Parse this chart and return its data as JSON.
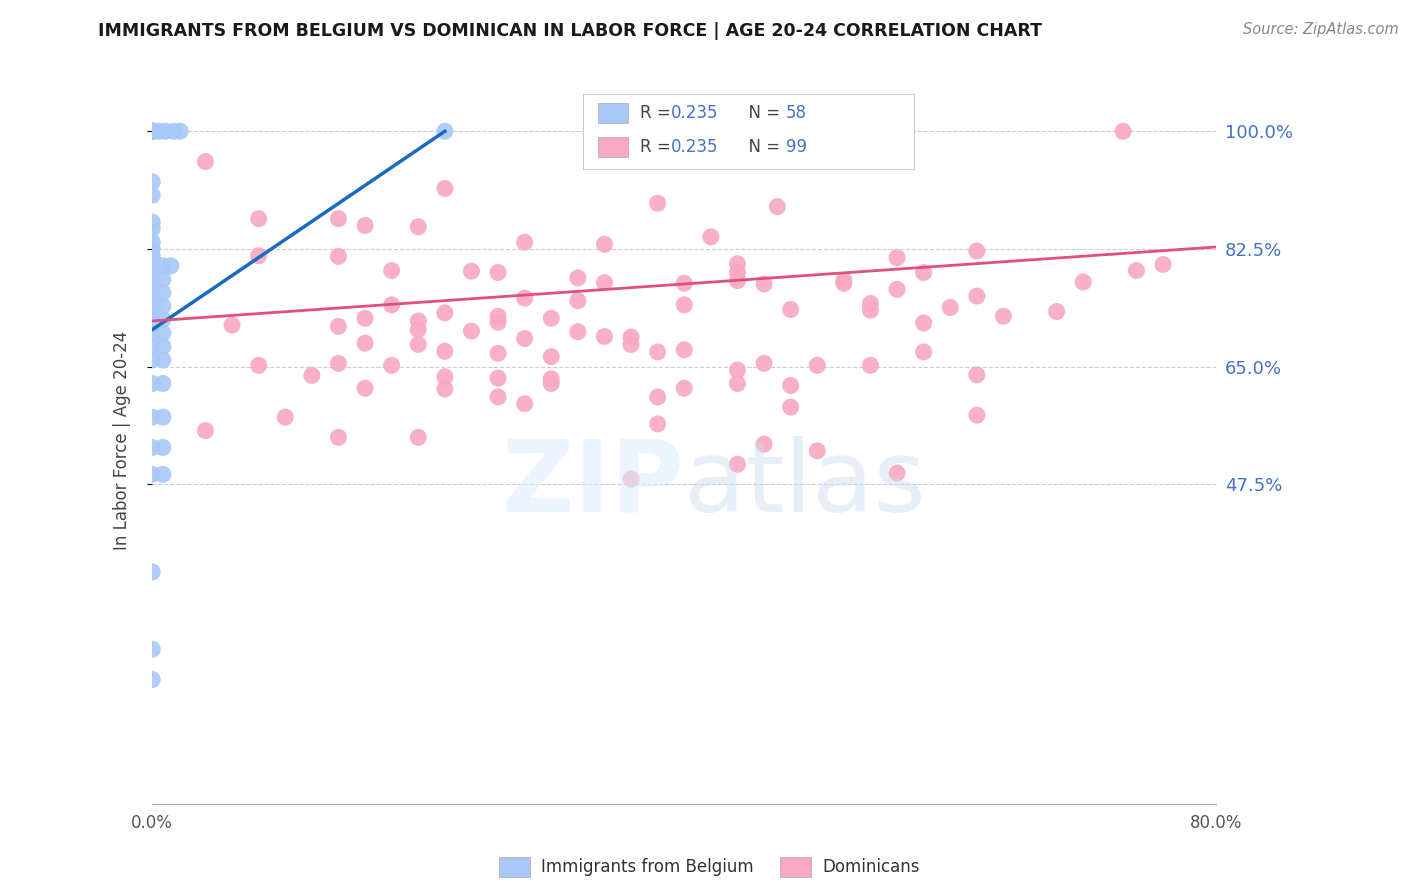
{
  "title": "IMMIGRANTS FROM BELGIUM VS DOMINICAN IN LABOR FORCE | AGE 20-24 CORRELATION CHART",
  "source": "Source: ZipAtlas.com",
  "ylabel": "In Labor Force | Age 20-24",
  "xlim": [
    0.0,
    0.8
  ],
  "ylim": [
    0.0,
    1.08
  ],
  "ytick_values": [
    0.475,
    0.65,
    0.825,
    1.0
  ],
  "ytick_labels": [
    "47.5%",
    "65.0%",
    "82.5%",
    "100.0%"
  ],
  "xtick_values": [
    0.0,
    0.1,
    0.2,
    0.3,
    0.4,
    0.5,
    0.6,
    0.7,
    0.8
  ],
  "xtick_labels": [
    "0.0%",
    "",
    "",
    "",
    "",
    "",
    "",
    "",
    "80.0%"
  ],
  "belgium_color": "#a8c8f8",
  "dominican_color": "#f8a8c0",
  "belgium_line_color": "#1a6bbf",
  "dominican_line_color": "#e0507a",
  "belgium_r": "0.235",
  "belgium_n": "58",
  "dominican_r": "0.235",
  "dominican_n": "99",
  "stat_color": "#4472c4",
  "belgium_points": [
    [
      0.0,
      1.0
    ],
    [
      0.0,
      1.0
    ],
    [
      0.0,
      1.0
    ],
    [
      0.0,
      1.0
    ],
    [
      0.0,
      1.0
    ],
    [
      0.0,
      1.0
    ],
    [
      0.0,
      1.0
    ],
    [
      0.0,
      1.0
    ],
    [
      0.005,
      1.0
    ],
    [
      0.01,
      1.0
    ],
    [
      0.016,
      1.0
    ],
    [
      0.021,
      1.0
    ],
    [
      0.22,
      1.0
    ],
    [
      0.0,
      0.925
    ],
    [
      0.0,
      0.905
    ],
    [
      0.0,
      0.865
    ],
    [
      0.0,
      0.855
    ],
    [
      0.0,
      0.835
    ],
    [
      0.0,
      0.825
    ],
    [
      0.0,
      0.815
    ],
    [
      0.0,
      0.81
    ],
    [
      0.0,
      0.8
    ],
    [
      0.0,
      0.795
    ],
    [
      0.008,
      0.8
    ],
    [
      0.014,
      0.8
    ],
    [
      0.0,
      0.78
    ],
    [
      0.0,
      0.775
    ],
    [
      0.008,
      0.78
    ],
    [
      0.0,
      0.76
    ],
    [
      0.0,
      0.755
    ],
    [
      0.008,
      0.76
    ],
    [
      0.0,
      0.74
    ],
    [
      0.0,
      0.735
    ],
    [
      0.008,
      0.74
    ],
    [
      0.0,
      0.72
    ],
    [
      0.008,
      0.72
    ],
    [
      0.0,
      0.7
    ],
    [
      0.008,
      0.7
    ],
    [
      0.0,
      0.68
    ],
    [
      0.008,
      0.68
    ],
    [
      0.0,
      0.66
    ],
    [
      0.008,
      0.66
    ],
    [
      0.0,
      0.625
    ],
    [
      0.008,
      0.625
    ],
    [
      0.0,
      0.575
    ],
    [
      0.008,
      0.575
    ],
    [
      0.0,
      0.53
    ],
    [
      0.008,
      0.53
    ],
    [
      0.0,
      0.49
    ],
    [
      0.008,
      0.49
    ],
    [
      0.0,
      0.345
    ],
    [
      0.0,
      0.23
    ],
    [
      0.0,
      0.185
    ]
  ],
  "dominican_points": [
    [
      0.73,
      1.0
    ],
    [
      0.04,
      0.955
    ],
    [
      0.22,
      0.915
    ],
    [
      0.38,
      0.893
    ],
    [
      0.47,
      0.888
    ],
    [
      0.08,
      0.87
    ],
    [
      0.14,
      0.87
    ],
    [
      0.16,
      0.86
    ],
    [
      0.2,
      0.858
    ],
    [
      0.42,
      0.843
    ],
    [
      0.28,
      0.835
    ],
    [
      0.34,
      0.832
    ],
    [
      0.62,
      0.822
    ],
    [
      0.08,
      0.815
    ],
    [
      0.14,
      0.814
    ],
    [
      0.56,
      0.812
    ],
    [
      0.44,
      0.803
    ],
    [
      0.18,
      0.793
    ],
    [
      0.24,
      0.792
    ],
    [
      0.26,
      0.79
    ],
    [
      0.44,
      0.79
    ],
    [
      0.58,
      0.79
    ],
    [
      0.32,
      0.782
    ],
    [
      0.44,
      0.778
    ],
    [
      0.52,
      0.778
    ],
    [
      0.34,
      0.775
    ],
    [
      0.4,
      0.774
    ],
    [
      0.46,
      0.773
    ],
    [
      0.52,
      0.774
    ],
    [
      0.56,
      0.765
    ],
    [
      0.62,
      0.755
    ],
    [
      0.28,
      0.752
    ],
    [
      0.32,
      0.748
    ],
    [
      0.4,
      0.742
    ],
    [
      0.54,
      0.744
    ],
    [
      0.18,
      0.742
    ],
    [
      0.6,
      0.738
    ],
    [
      0.48,
      0.735
    ],
    [
      0.54,
      0.734
    ],
    [
      0.22,
      0.73
    ],
    [
      0.68,
      0.732
    ],
    [
      0.26,
      0.725
    ],
    [
      0.3,
      0.722
    ],
    [
      0.64,
      0.725
    ],
    [
      0.16,
      0.722
    ],
    [
      0.7,
      0.776
    ],
    [
      0.74,
      0.793
    ],
    [
      0.76,
      0.802
    ],
    [
      0.2,
      0.718
    ],
    [
      0.26,
      0.716
    ],
    [
      0.58,
      0.715
    ],
    [
      0.14,
      0.71
    ],
    [
      0.06,
      0.712
    ],
    [
      0.2,
      0.705
    ],
    [
      0.24,
      0.703
    ],
    [
      0.32,
      0.702
    ],
    [
      0.34,
      0.695
    ],
    [
      0.36,
      0.694
    ],
    [
      0.28,
      0.692
    ],
    [
      0.16,
      0.685
    ],
    [
      0.2,
      0.683
    ],
    [
      0.36,
      0.683
    ],
    [
      0.4,
      0.675
    ],
    [
      0.22,
      0.673
    ],
    [
      0.26,
      0.67
    ],
    [
      0.38,
      0.672
    ],
    [
      0.58,
      0.672
    ],
    [
      0.3,
      0.665
    ],
    [
      0.14,
      0.655
    ],
    [
      0.18,
      0.652
    ],
    [
      0.08,
      0.652
    ],
    [
      0.46,
      0.655
    ],
    [
      0.5,
      0.652
    ],
    [
      0.54,
      0.652
    ],
    [
      0.12,
      0.637
    ],
    [
      0.44,
      0.645
    ],
    [
      0.22,
      0.635
    ],
    [
      0.26,
      0.633
    ],
    [
      0.3,
      0.632
    ],
    [
      0.3,
      0.625
    ],
    [
      0.44,
      0.625
    ],
    [
      0.22,
      0.617
    ],
    [
      0.48,
      0.622
    ],
    [
      0.4,
      0.618
    ],
    [
      0.26,
      0.605
    ],
    [
      0.38,
      0.605
    ],
    [
      0.28,
      0.595
    ],
    [
      0.48,
      0.59
    ],
    [
      0.1,
      0.575
    ],
    [
      0.62,
      0.578
    ],
    [
      0.38,
      0.565
    ],
    [
      0.04,
      0.555
    ],
    [
      0.14,
      0.545
    ],
    [
      0.16,
      0.618
    ],
    [
      0.2,
      0.545
    ],
    [
      0.46,
      0.535
    ],
    [
      0.5,
      0.525
    ],
    [
      0.44,
      0.505
    ],
    [
      0.56,
      0.492
    ],
    [
      0.36,
      0.483
    ],
    [
      0.62,
      0.638
    ]
  ],
  "belgium_trendline": [
    [
      0.0,
      0.705
    ],
    [
      0.22,
      1.0
    ]
  ],
  "dominican_trendline": [
    [
      0.0,
      0.718
    ],
    [
      0.8,
      0.828
    ]
  ]
}
